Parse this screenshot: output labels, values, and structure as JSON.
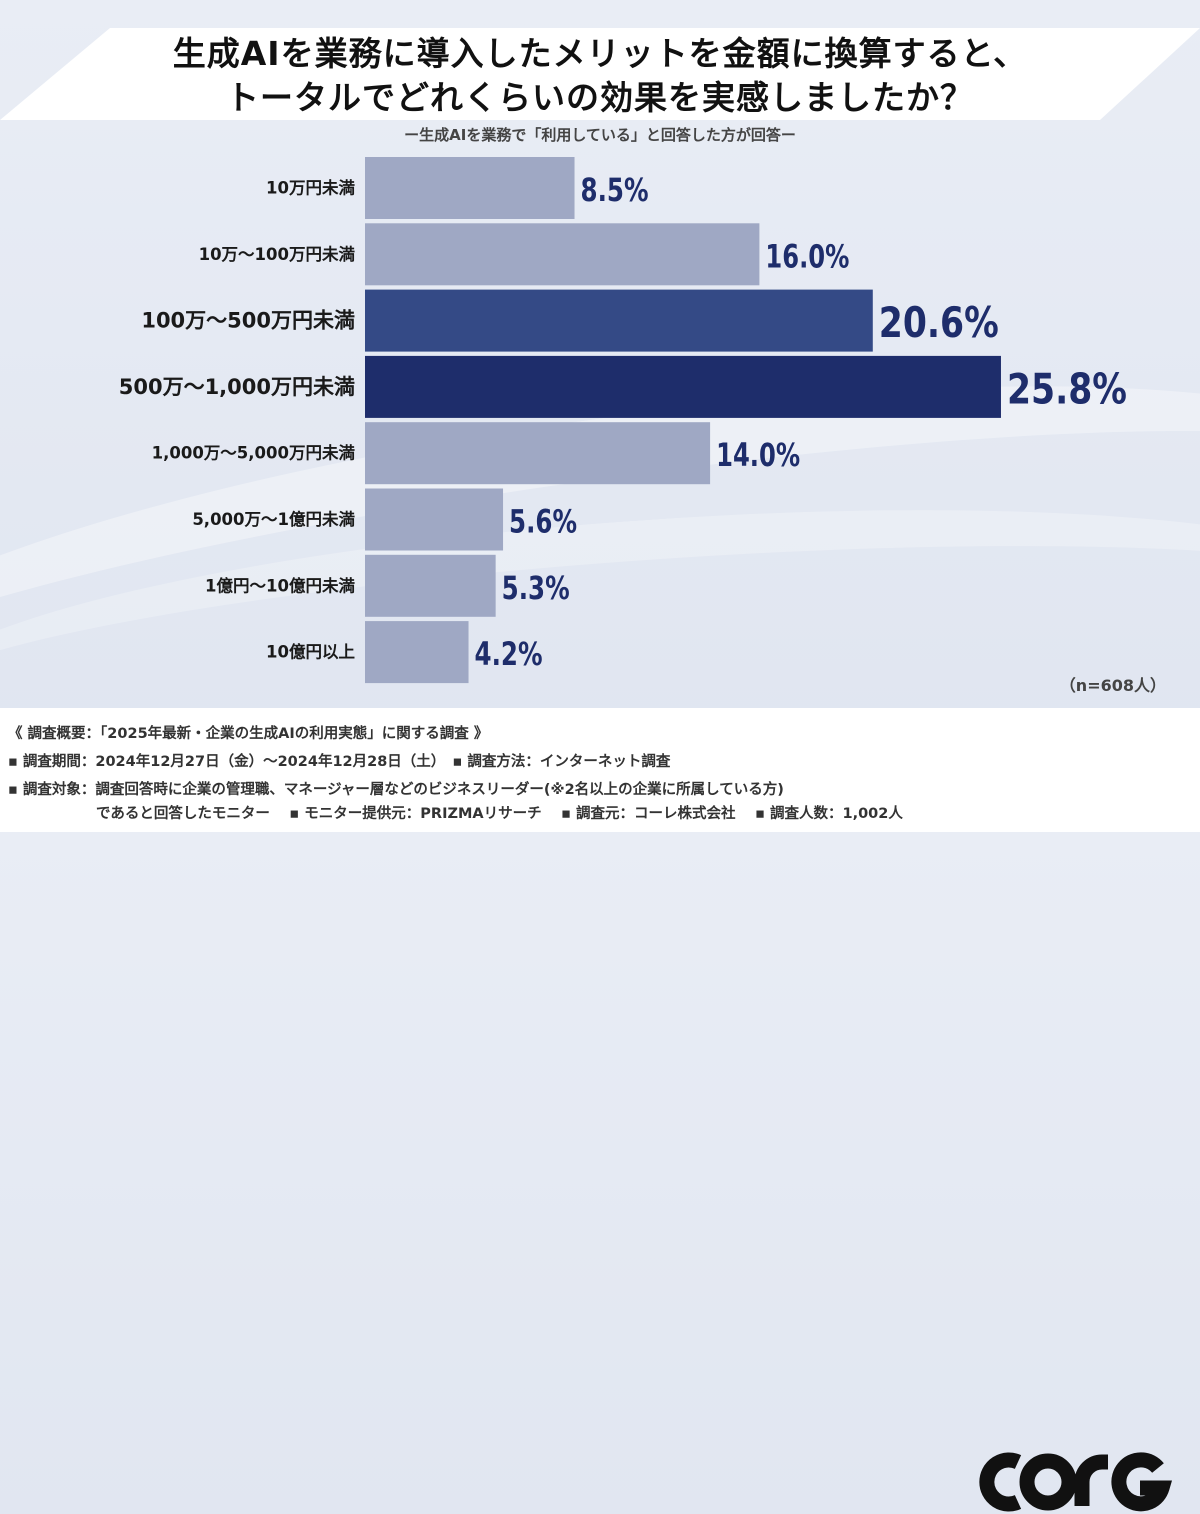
{
  "title_line1": "生成AIを業務に導入したメリットを金額に換算すると、",
  "title_line2": "トータルでどれくらいの効果を実感しましたか？",
  "subtitle": "ー生成AIを業務で「利用している」と回答した方が回答ー",
  "sample_note": "（n=608人）",
  "colors": {
    "light": "#9fa8c4",
    "mid": "#344a86",
    "dark": "#1e2d6b",
    "label": "#1e2d6b"
  },
  "chart_data": {
    "type": "bar",
    "orientation": "horizontal",
    "unit": "%",
    "categories": [
      "10万円未満",
      "10万～100万円未満",
      "100万～500万円未満",
      "500万～1,000万円未満",
      "1,000万～5,000万円未満",
      "5,000万～1億円未満",
      "1億円～10億円未満",
      "10億円以上"
    ],
    "values": [
      8.5,
      16.0,
      20.6,
      25.8,
      14.0,
      5.6,
      5.3,
      4.2
    ],
    "value_labels": [
      "8.5%",
      "16.0%",
      "20.6%",
      "25.8%",
      "14.0%",
      "5.6%",
      "5.3%",
      "4.2%"
    ],
    "highlight": [
      "light",
      "light",
      "mid",
      "dark",
      "light",
      "light",
      "light",
      "light"
    ]
  },
  "notes": {
    "line1": "《 調査概要：「2025年最新・企業の生成AIの利用実態」に関する調査 》",
    "line2": "▪ 調査期間：2024年12月27日（金）～2024年12月28日（土）　▪ 調査方法：インターネット調査",
    "line3": "▪ 調査対象：調査回答時に企業の管理職、マネージャー層などのビジネスリーダー(※2名以上の企業に所属している方)",
    "line4": "であると回答したモニター　 ▪ モニター提供元：PRIZMAリサーチ　 ▪ 調査元：コーレ株式会社　 ▪ 調査人数：1,002人"
  },
  "logo_text": "CORE"
}
